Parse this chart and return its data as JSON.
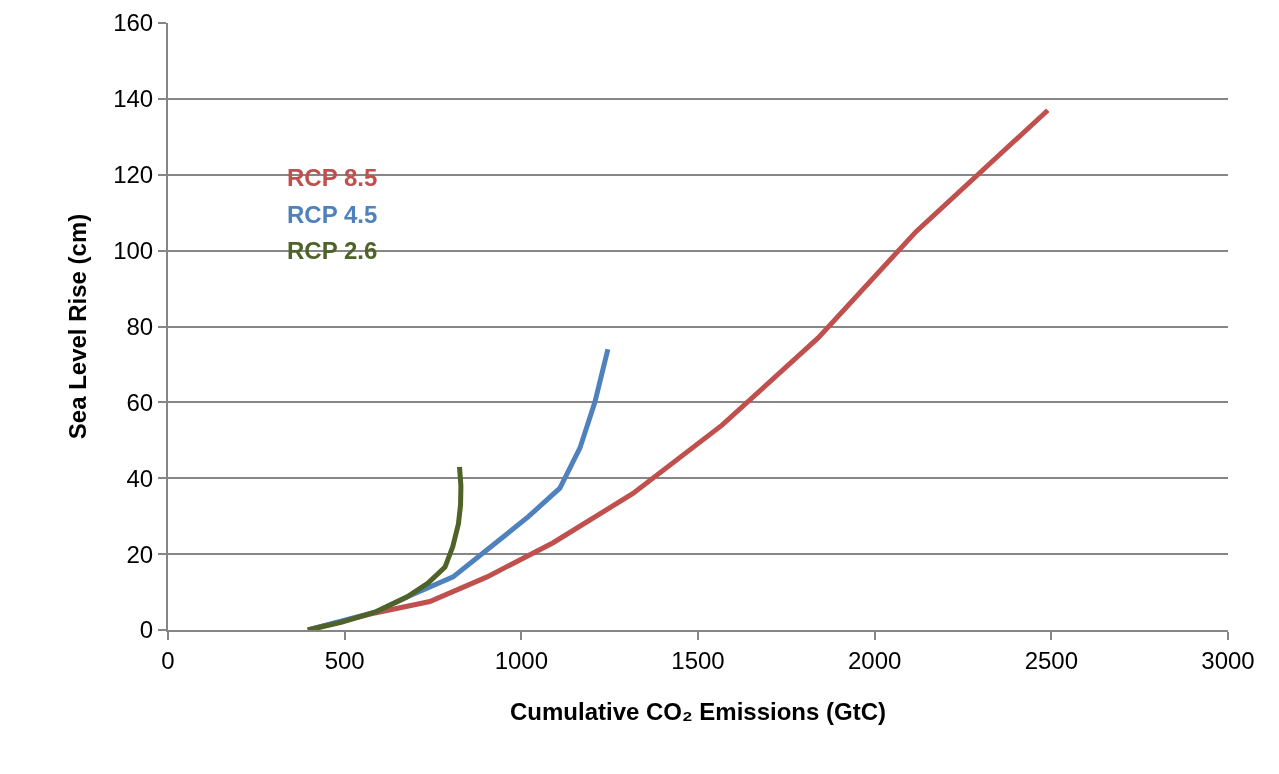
{
  "chart_data": {
    "type": "line",
    "xlabel": "Cumulative CO₂ Emissions (GtC)",
    "ylabel": "Sea Level Rise (cm)",
    "xlim": [
      0,
      3000
    ],
    "xticks": [
      0,
      500,
      1000,
      1500,
      2000,
      2500,
      3000
    ],
    "ylim": [
      0,
      160
    ],
    "yticks": [
      0,
      20,
      40,
      60,
      80,
      100,
      120,
      140,
      160
    ],
    "grid": "y",
    "legend": false,
    "marker": "none",
    "line_style": "solid",
    "series": [
      {
        "name": "RCP 8.5",
        "color": "#c0504d",
        "x": [
          396,
          586,
          741,
          903,
          1090,
          1316,
          1568,
          1840,
          2117,
          2490
        ],
        "values": [
          0,
          4.5,
          7.5,
          14,
          23,
          36,
          54,
          77,
          105,
          137
        ]
      },
      {
        "name": "RCP 4.5",
        "color": "#4f81bd",
        "x": [
          396,
          586,
          676,
          807,
          920,
          1019,
          1109,
          1166,
          1208,
          1245
        ],
        "values": [
          0,
          4.7,
          8.7,
          14,
          22.4,
          29.8,
          37.4,
          48,
          60,
          74
        ]
      },
      {
        "name": "RCP 2.6",
        "color": "#4f6228",
        "x": [
          396,
          490,
          586,
          676,
          736,
          784,
          806,
          822,
          828,
          829,
          825
        ],
        "values": [
          0,
          2,
          4.7,
          8.7,
          12.4,
          16.6,
          22,
          28,
          33,
          38,
          43
        ]
      }
    ]
  }
}
